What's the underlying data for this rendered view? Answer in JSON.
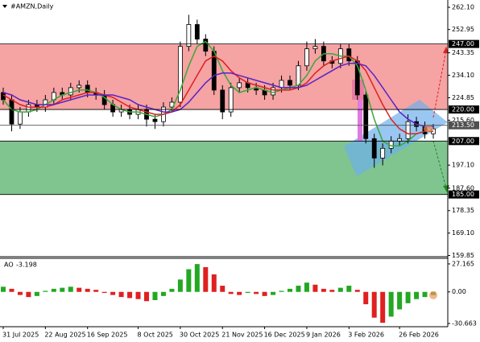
{
  "chart_data": {
    "type": "candlestick",
    "title": "#AMZN,Daily",
    "categories": [
      "31 Jul 2025",
      null,
      null,
      null,
      null,
      "22 Aug 2025",
      null,
      null,
      null,
      null,
      "16 Sep 2025",
      null,
      null,
      null,
      null,
      null,
      "8 Oct 2025",
      null,
      null,
      null,
      null,
      "30 Oct 2025",
      null,
      null,
      null,
      null,
      "21 Nov 2025",
      null,
      null,
      null,
      null,
      "16 Dec 2025",
      null,
      null,
      null,
      null,
      "9 Jan 2026",
      null,
      null,
      null,
      null,
      "3 Feb 2026",
      null,
      null,
      null,
      null,
      null,
      "26 Feb 2026",
      null,
      null,
      null,
      null
    ],
    "open": [
      227,
      224,
      214,
      219,
      222,
      221,
      224,
      227,
      226,
      229,
      230,
      227,
      226,
      222,
      219,
      220,
      218,
      220,
      216,
      215,
      221,
      223,
      246,
      255,
      249,
      244,
      228,
      219,
      229,
      231,
      229,
      228,
      226,
      229,
      232,
      230,
      238,
      245,
      246,
      240,
      239,
      245,
      240,
      226,
      208,
      200,
      204,
      207,
      208,
      215,
      213,
      210
    ],
    "high": [
      229,
      226,
      221,
      224,
      224,
      226,
      229,
      229,
      231,
      232,
      232,
      229,
      228,
      224,
      222,
      222,
      222,
      222,
      218,
      223,
      225,
      248,
      259,
      257,
      251,
      246,
      230,
      231,
      233,
      233,
      231,
      230,
      231,
      234,
      234,
      240,
      248,
      249,
      248,
      242,
      247,
      247,
      242,
      228,
      210,
      206,
      209,
      210,
      218,
      217,
      215,
      214
    ],
    "low": [
      222,
      211,
      212,
      217,
      219,
      219,
      222,
      224,
      224,
      227,
      225,
      224,
      220,
      217,
      217,
      216,
      216,
      213,
      212,
      213,
      219,
      221,
      244,
      247,
      242,
      226,
      216,
      217,
      227,
      227,
      226,
      224,
      224,
      227,
      228,
      228,
      236,
      243,
      238,
      237,
      237,
      238,
      224,
      206,
      196,
      197,
      202,
      205,
      206,
      211,
      208,
      208
    ],
    "close": [
      224,
      214,
      219,
      222,
      221,
      224,
      227,
      226,
      229,
      230,
      227,
      226,
      222,
      219,
      220,
      218,
      220,
      216,
      215,
      221,
      223,
      246,
      255,
      249,
      244,
      228,
      219,
      229,
      231,
      229,
      228,
      226,
      229,
      232,
      230,
      238,
      245,
      246,
      240,
      239,
      245,
      240,
      226,
      208,
      200,
      204,
      207,
      208,
      215,
      213,
      210,
      212
    ],
    "bull_color": "#ffffff",
    "bear_color": "#000000",
    "series": [
      {
        "color": "#3aa83a",
        "values": [
          224,
          220,
          219,
          219,
          220,
          222,
          224,
          226,
          227,
          228,
          228,
          227,
          225,
          222,
          220,
          219,
          219,
          218,
          217,
          218,
          220,
          228,
          238,
          246,
          248,
          244,
          236,
          230,
          227,
          228,
          229,
          228,
          227,
          228,
          229,
          230,
          234,
          240,
          243,
          243,
          242,
          242,
          238,
          228,
          216,
          207,
          205,
          205,
          207,
          210,
          211,
          211
        ]
      },
      {
        "color": "#e02020",
        "values": [
          226,
          224,
          222,
          221,
          221,
          221,
          222,
          224,
          225,
          226,
          227,
          227,
          226,
          225,
          223,
          221,
          220,
          219,
          218,
          218,
          219,
          222,
          228,
          234,
          240,
          242,
          240,
          236,
          233,
          231,
          230,
          229,
          228,
          228,
          228,
          229,
          231,
          235,
          238,
          240,
          241,
          242,
          240,
          236,
          229,
          222,
          216,
          212,
          210,
          210,
          211,
          211
        ]
      },
      {
        "color": "#5a22c8",
        "values": [
          227,
          226,
          224,
          223,
          222,
          222,
          222,
          223,
          224,
          225,
          226,
          226,
          226,
          226,
          225,
          224,
          222,
          221,
          220,
          219,
          219,
          220,
          223,
          227,
          231,
          234,
          235,
          235,
          234,
          233,
          232,
          231,
          230,
          229,
          229,
          229,
          230,
          232,
          234,
          236,
          238,
          239,
          239,
          238,
          234,
          229,
          224,
          219,
          216,
          214,
          213,
          213
        ]
      }
    ],
    "ylim": [
      159.7,
      265.1
    ],
    "yticks": [
      {
        "value": 262.1,
        "label": "262.10"
      },
      {
        "value": 252.95,
        "label": "252.95"
      },
      {
        "value": 243.35,
        "label": "243.35"
      },
      {
        "value": 234.1,
        "label": "234.10"
      },
      {
        "value": 224.85,
        "label": "224.85"
      },
      {
        "value": 215.6,
        "label": "215.60"
      },
      {
        "value": 197.1,
        "label": "197.10"
      },
      {
        "value": 187.6,
        "label": "187.60"
      },
      {
        "value": 178.35,
        "label": "178.35"
      },
      {
        "value": 169.1,
        "label": "169.10"
      },
      {
        "value": 159.85,
        "label": "159.85"
      }
    ],
    "zones": [
      {
        "from": 220,
        "to": 247,
        "color": "#f5a3a3"
      },
      {
        "from": 185,
        "to": 207,
        "color": "#80c58f"
      }
    ],
    "levels": [
      {
        "value": 247,
        "label": "247.00",
        "color": "#000000"
      },
      {
        "value": 220,
        "label": "220.00",
        "color": "#000000"
      },
      {
        "value": 213.5,
        "label": "213.50",
        "color": "#505050"
      },
      {
        "value": 207,
        "label": "207.00",
        "color": "#000000"
      },
      {
        "value": 185,
        "label": "185.00",
        "color": "#000000"
      }
    ],
    "ao": {
      "name": "AO",
      "values": [
        5,
        3,
        -3,
        -5,
        -4,
        1,
        3,
        4,
        5,
        4,
        3,
        2,
        -1,
        -3,
        -5,
        -6,
        -7,
        -9,
        -8,
        -4,
        3,
        12,
        22,
        27,
        24,
        17,
        6,
        -2,
        -3,
        -1,
        -2,
        -4,
        -3,
        1,
        3,
        6,
        9,
        7,
        3,
        2,
        4,
        6,
        2,
        -12,
        -25,
        -30,
        -24,
        -17,
        -11,
        -7,
        -5,
        -3.198
      ],
      "up_color": "#22a822",
      "down_color": "#e02020",
      "ylim": [
        -33.8,
        32.6
      ],
      "yticks": [
        27.165,
        {
          "value": 0,
          "label": "0.00"
        },
        -30.663
      ]
    }
  }
}
